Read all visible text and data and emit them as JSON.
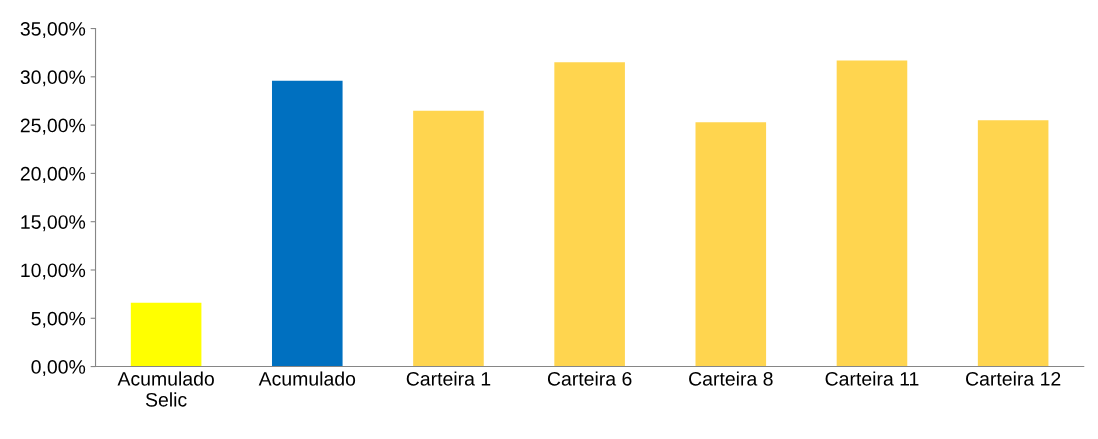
{
  "chart_data": {
    "type": "bar",
    "categories": [
      "Acumulado\nSelic",
      "Acumulado",
      "Carteira 1",
      "Carteira 6",
      "Carteira 8",
      "Carteira 11",
      "Carteira 12"
    ],
    "values": [
      6.6,
      29.6,
      26.5,
      31.5,
      25.3,
      31.7,
      25.5
    ],
    "colors": [
      "#ffff00",
      "#0070c0",
      "#ffd54f",
      "#ffd54f",
      "#ffd54f",
      "#ffd54f",
      "#ffd54f"
    ],
    "ylim": [
      0,
      35
    ],
    "yticks": [
      {
        "value": 0,
        "label": "0,00%"
      },
      {
        "value": 5,
        "label": "5,00%"
      },
      {
        "value": 10,
        "label": "10,00%"
      },
      {
        "value": 15,
        "label": "15,00%"
      },
      {
        "value": 20,
        "label": "20,00%"
      },
      {
        "value": 25,
        "label": "25,00%"
      },
      {
        "value": 30,
        "label": "30,00%"
      },
      {
        "value": 35,
        "label": "35,00%"
      }
    ],
    "grid": false,
    "legend": false
  }
}
